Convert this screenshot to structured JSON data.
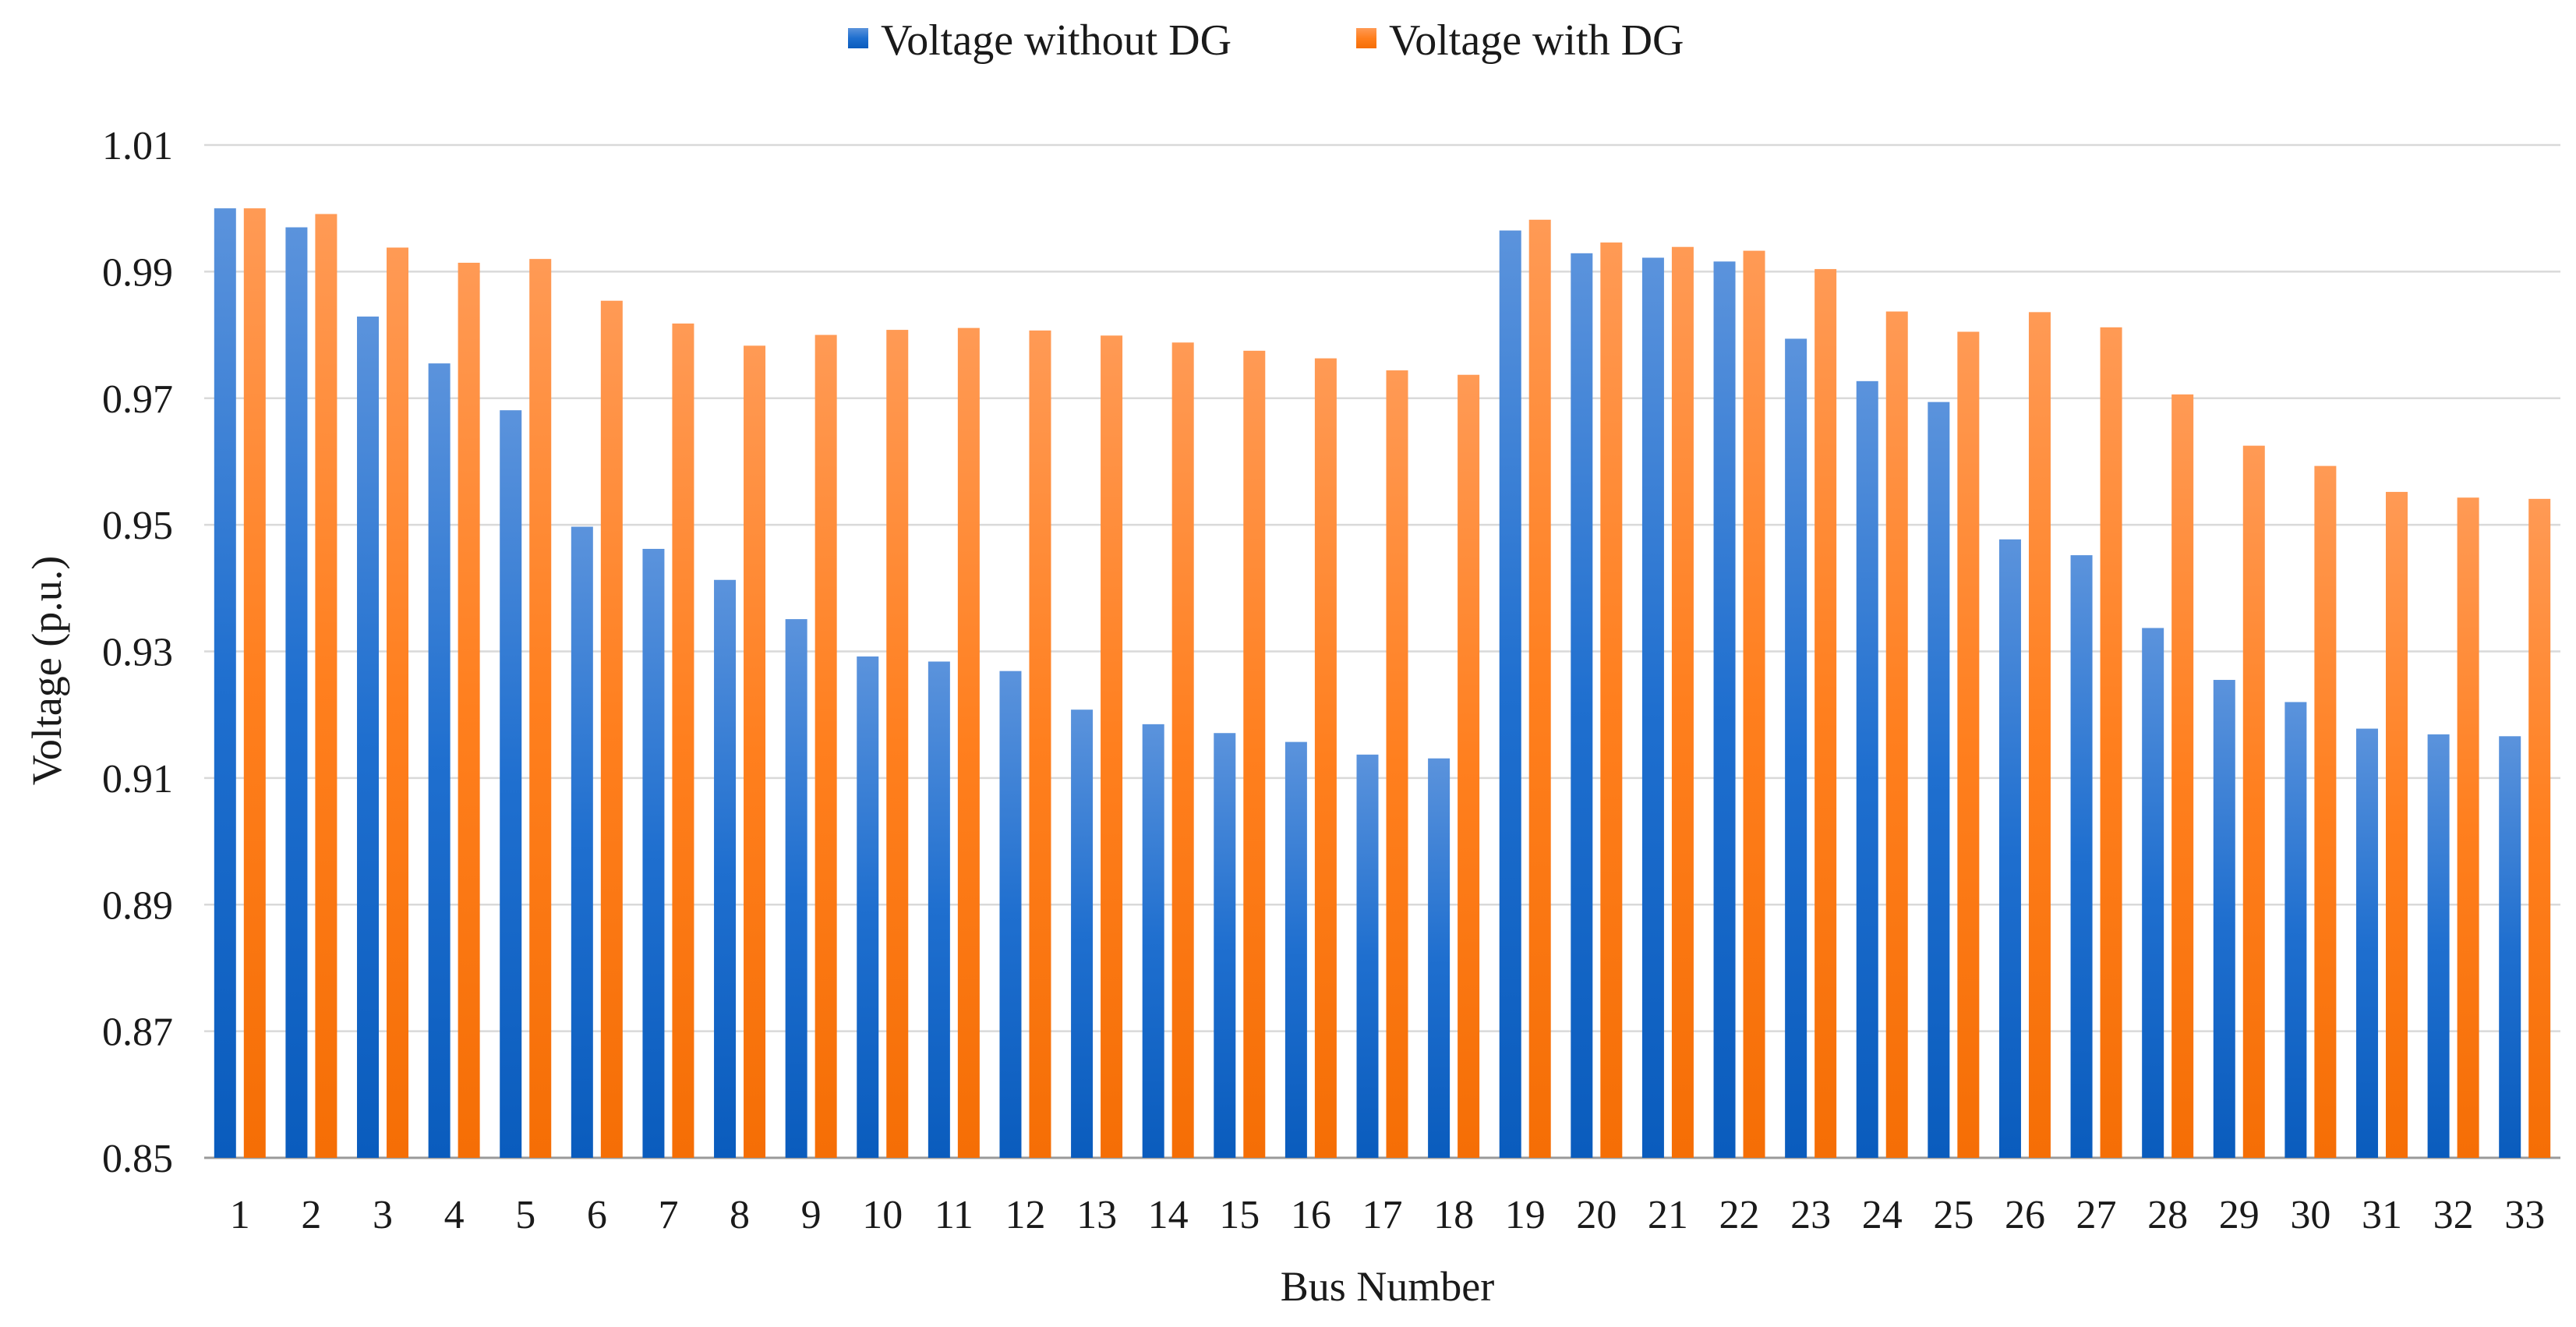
{
  "chart_data": {
    "type": "bar",
    "title": "",
    "xlabel": "Bus Number",
    "ylabel": "Voltage  (p.u.)",
    "ylim": [
      0.85,
      1.01
    ],
    "yticks": [
      0.85,
      0.87,
      0.89,
      0.91,
      0.93,
      0.95,
      0.97,
      0.99,
      1.01
    ],
    "ytick_labels": [
      "0.85",
      "0.87",
      "0.89",
      "0.91",
      "0.93",
      "0.95",
      "0.97",
      "0.99",
      "1.01"
    ],
    "grid": "horizontal",
    "legend_position": "top-center",
    "categories": [
      "1",
      "2",
      "3",
      "4",
      "5",
      "6",
      "7",
      "8",
      "9",
      "10",
      "11",
      "12",
      "13",
      "14",
      "15",
      "16",
      "17",
      "18",
      "19",
      "20",
      "21",
      "22",
      "23",
      "24",
      "25",
      "26",
      "27",
      "28",
      "29",
      "30",
      "31",
      "32",
      "33"
    ],
    "series": [
      {
        "name": "Voltage without DG",
        "color": "#1f6fcf",
        "values": [
          1.0,
          0.997,
          0.9829,
          0.9755,
          0.9681,
          0.9497,
          0.9462,
          0.9413,
          0.9351,
          0.9292,
          0.9284,
          0.9269,
          0.9208,
          0.9185,
          0.9171,
          0.9157,
          0.9137,
          0.9131,
          0.9965,
          0.9929,
          0.9922,
          0.9916,
          0.9794,
          0.9727,
          0.9694,
          0.9477,
          0.9452,
          0.9337,
          0.9255,
          0.922,
          0.9178,
          0.9169,
          0.9166
        ]
      },
      {
        "name": "Voltage with DG",
        "color": "#ff7f1e",
        "values": [
          1.0,
          0.9991,
          0.9938,
          0.9914,
          0.992,
          0.9854,
          0.9818,
          0.9783,
          0.98,
          0.9808,
          0.9811,
          0.9807,
          0.9799,
          0.9788,
          0.9775,
          0.9763,
          0.9744,
          0.9737,
          0.9982,
          0.9946,
          0.9939,
          0.9933,
          0.9904,
          0.9837,
          0.9805,
          0.9836,
          0.9812,
          0.9706,
          0.9625,
          0.9593,
          0.9552,
          0.9543,
          0.9541
        ]
      }
    ]
  }
}
